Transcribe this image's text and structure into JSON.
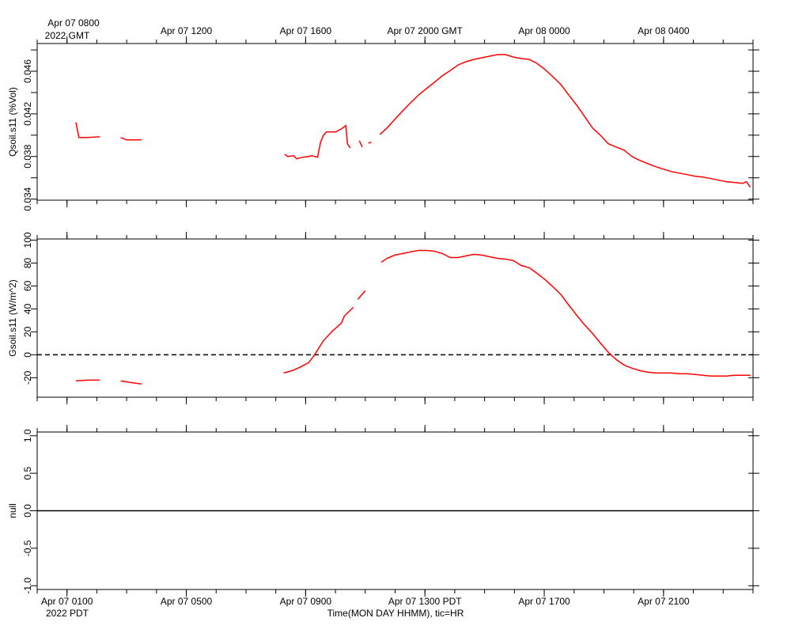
{
  "chart_data": {
    "type": "line",
    "xlim": [
      0,
      24
    ],
    "xticks": [
      {
        "value": 1,
        "label": "Apr 07 0100"
      },
      {
        "value": 5,
        "label": "Apr 07 0500"
      },
      {
        "value": 9,
        "label": "Apr 07 0900"
      },
      {
        "value": 13,
        "label": "Apr 07 1300 PDT"
      },
      {
        "value": 17,
        "label": "Apr 07 1700"
      },
      {
        "value": 21,
        "label": "Apr 07 2100"
      }
    ],
    "x2ticks": [
      {
        "value": 1,
        "label": "Apr 07 0800"
      },
      {
        "value": 5,
        "label": "Apr 07 1200"
      },
      {
        "value": 9,
        "label": "Apr 07 1600"
      },
      {
        "value": 13,
        "label": "Apr 07 2000 GMT"
      },
      {
        "value": 17,
        "label": "Apr 08 0000"
      },
      {
        "value": 21,
        "label": "Apr 08 0400"
      }
    ],
    "xminorticks": [
      0,
      1,
      2,
      3,
      4,
      5,
      6,
      7,
      8,
      9,
      10,
      11,
      12,
      13,
      14,
      15,
      16,
      17,
      18,
      19,
      20,
      21,
      22,
      23,
      24
    ],
    "xlabel": "Time(MON DAY HHMM), tic=HR",
    "x_year_label": "2022 PDT",
    "x2_year_label": "2022 GMT",
    "panels": [
      {
        "ylabel": "Qsoil.s11 (%Vol)",
        "ylim": [
          0.0339,
          0.0486
        ],
        "yticks": [
          0.034,
          0.038,
          0.042,
          0.046
        ],
        "yminorticks": [
          0.036,
          0.04,
          0.044,
          0.048
        ],
        "series": [
          {
            "color": "#ff0000",
            "x": [
              1.3,
              1.4,
              1.7,
              2.1,
              2.4,
              2.8,
              3.0,
              3.3,
              3.5,
              6,
              8.3,
              8.4,
              8.6,
              8.7,
              8.9,
              9.1,
              9.2,
              9.4,
              9.5,
              9.6,
              9.7,
              10.0,
              10.2,
              10.35,
              10.4,
              10.5,
              10.65,
              10.8,
              10.9,
              11.0,
              11.1,
              11.2,
              11.35,
              11.49,
              11.73,
              11.99,
              12.26,
              12.52,
              12.79,
              13.05,
              13.32,
              13.58,
              13.85,
              14.11,
              14.38,
              14.64,
              14.91,
              15.17,
              15.44,
              15.7,
              15.97,
              16.23,
              16.5,
              16.76,
              17.03,
              17.29,
              17.56,
              17.82,
              18.09,
              18.35,
              18.62,
              18.88,
              19.15,
              19.41,
              19.68,
              19.94,
              20.21,
              20.47,
              20.74,
              21.0,
              21.26,
              21.53,
              21.79,
              22.06,
              22.32,
              22.59,
              22.85,
              23.12,
              23.38,
              23.65,
              23.78,
              23.91
            ],
            "values": [
              0.04119,
              0.03978,
              0.03978,
              0.03985,
              null,
              0.03978,
              0.03956,
              0.03956,
              0.03956,
              null,
              0.03822,
              0.038,
              0.03807,
              0.03778,
              0.03793,
              0.038,
              0.03807,
              0.03793,
              0.03933,
              0.04,
              0.0403,
              0.0403,
              0.04059,
              0.04089,
              0.03919,
              0.03881,
              null,
              0.03948,
              0.03889,
              null,
              0.03926,
              0.03933,
              null,
              0.04007,
              0.04067,
              0.04148,
              0.0423,
              0.04304,
              0.04378,
              0.04437,
              0.04496,
              0.04556,
              0.04607,
              0.04659,
              0.04689,
              0.04711,
              0.04726,
              0.04741,
              0.04756,
              0.04756,
              0.04733,
              0.04719,
              0.04711,
              0.04674,
              0.04615,
              0.04548,
              0.04474,
              0.04378,
              0.04281,
              0.04178,
              0.04067,
              0.04,
              0.03919,
              0.03889,
              0.03859,
              0.038,
              0.03763,
              0.03733,
              0.03704,
              0.03681,
              0.03659,
              0.03644,
              0.0363,
              0.03615,
              0.03607,
              0.03593,
              0.03578,
              0.03563,
              0.03556,
              0.03548,
              0.03563,
              0.03511
            ]
          }
        ]
      },
      {
        "ylabel": "Gsoil.s11 (W/m^2)",
        "ylim": [
          -37,
          101
        ],
        "yticks": [
          -20,
          0,
          20,
          40,
          60,
          80,
          100
        ],
        "hline": {
          "value": 0,
          "style": "dashed"
        },
        "series": [
          {
            "color": "#ff0000",
            "x": [
              1.3,
              1.7,
              2.1,
              2.4,
              2.8,
              3.1,
              3.5,
              6,
              8.26,
              8.55,
              8.8,
              9.1,
              9.3,
              9.6,
              9.9,
              10.2,
              10.3,
              10.6,
              10.68,
              10.75,
              11.0,
              11.1,
              11.25,
              11.4,
              11.54,
              11.73,
              11.99,
              12.26,
              12.52,
              12.79,
              13.05,
              13.32,
              13.58,
              13.85,
              14.11,
              14.38,
              14.64,
              14.91,
              15.17,
              15.44,
              15.7,
              15.97,
              16.23,
              16.5,
              16.76,
              17.03,
              17.29,
              17.56,
              17.82,
              18.09,
              18.35,
              18.62,
              18.88,
              19.15,
              19.41,
              19.68,
              19.94,
              20.21,
              20.47,
              20.74,
              21.0,
              21.26,
              21.53,
              21.79,
              22.06,
              22.32,
              22.59,
              22.85,
              23.12,
              23.38,
              23.65,
              23.91
            ],
            "values": [
              -22.8,
              -22.1,
              -22.1,
              null,
              -22.8,
              -24.1,
              -25.5,
              null,
              -15.9,
              -13.8,
              -11,
              -6.9,
              0,
              12.4,
              20.7,
              27.6,
              33.8,
              41.4,
              null,
              48.3,
              55.9,
              null,
              66.9,
              null,
              80.7,
              84.1,
              86.9,
              88.3,
              89.7,
              91,
              91,
              90.3,
              88.3,
              84.8,
              84.8,
              86.2,
              87.6,
              86.9,
              85.5,
              84.1,
              83.4,
              82.1,
              77.9,
              75.9,
              71,
              65.5,
              59.3,
              52.4,
              43.4,
              34.5,
              26.2,
              18.6,
              10.3,
              2.1,
              -4.1,
              -9,
              -11.7,
              -13.8,
              -15.2,
              -15.9,
              -15.9,
              -15.9,
              -16.6,
              -16.6,
              -17.2,
              -17.9,
              -18.6,
              -18.6,
              -18.6,
              -17.9,
              -17.9,
              -17.9
            ]
          }
        ]
      },
      {
        "ylabel": "null",
        "ylim": [
          -1.05,
          1.05
        ],
        "yticks": [
          {
            "value": -1,
            "label": "-1.0"
          },
          {
            "value": -0.5,
            "label": "-0.5"
          },
          {
            "value": 0,
            "label": "0.0"
          },
          {
            "value": 0.5,
            "label": "0.5"
          },
          {
            "value": 1,
            "label": "1.0"
          }
        ],
        "hline": {
          "value": 0,
          "style": "solid"
        },
        "series": []
      }
    ]
  }
}
